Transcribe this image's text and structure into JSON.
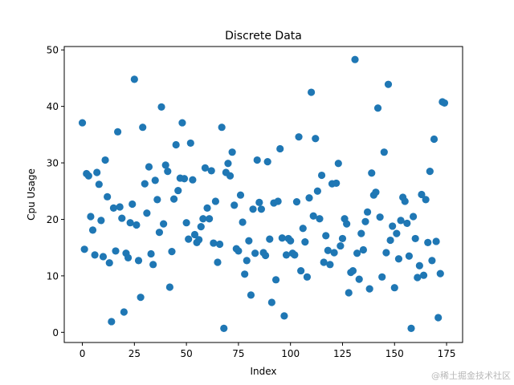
{
  "chart_data": {
    "type": "scatter",
    "title": "Discrete Data",
    "xlabel": "Index",
    "ylabel": "Cpu Usage",
    "xlim": [
      -8.7,
      182.7
    ],
    "ylim": [
      -1.8,
      50.6
    ],
    "xticks": [
      0,
      25,
      50,
      75,
      100,
      125,
      150,
      175
    ],
    "yticks": [
      0,
      10,
      20,
      30,
      40,
      50
    ],
    "grid": false,
    "color": "#1f77b4",
    "series": [
      {
        "x": [
          0,
          1,
          2,
          3,
          4,
          5,
          6,
          7,
          8,
          9,
          10,
          11,
          12,
          13,
          14,
          15,
          16,
          17,
          18,
          19,
          20,
          21,
          22,
          23,
          24,
          25,
          26,
          27,
          28,
          29,
          30,
          31,
          32,
          33,
          34,
          35,
          36,
          37,
          38,
          39,
          40,
          41,
          42,
          43,
          44,
          45,
          46,
          47,
          48,
          49,
          50,
          51,
          52,
          53,
          54,
          55,
          56,
          57,
          58,
          59,
          60,
          61,
          62,
          63,
          64,
          65,
          66,
          67,
          68,
          69,
          70,
          71,
          72,
          73,
          74,
          75,
          76,
          77,
          78,
          79,
          80,
          81,
          82,
          83,
          84,
          85,
          86,
          87,
          88,
          89,
          90,
          91,
          92,
          93,
          94,
          95,
          96,
          97,
          98,
          99,
          100,
          101,
          102,
          103,
          104,
          105,
          106,
          107,
          108,
          109,
          110,
          111,
          112,
          113,
          114,
          115,
          116,
          117,
          118,
          119,
          120,
          121,
          122,
          123,
          124,
          125,
          126,
          127,
          128,
          129,
          130,
          131,
          132,
          133,
          134,
          135,
          136,
          137,
          138,
          139,
          140,
          141,
          142,
          143,
          144,
          145,
          146,
          147,
          148,
          149,
          150,
          151,
          152,
          153,
          154,
          155,
          156,
          157,
          158,
          159,
          160,
          161,
          162,
          163,
          164,
          165,
          166,
          167,
          168,
          169,
          170,
          171,
          172,
          173,
          174
        ],
        "y": [
          37.1,
          14.7,
          28.1,
          27.7,
          20.5,
          18.1,
          13.7,
          28.3,
          26.2,
          19.8,
          13.4,
          30.5,
          24.0,
          12.3,
          1.9,
          22.0,
          14.4,
          35.5,
          22.2,
          20.2,
          3.6,
          14.0,
          13.2,
          19.4,
          22.7,
          44.8,
          19.0,
          12.7,
          6.2,
          36.3,
          26.3,
          21.1,
          29.3,
          13.9,
          12.0,
          26.9,
          23.5,
          17.7,
          39.9,
          19.2,
          29.6,
          28.5,
          8.0,
          14.3,
          23.6,
          33.2,
          25.1,
          27.3,
          37.1,
          27.2,
          19.4,
          16.5,
          33.5,
          27.0,
          17.3,
          15.9,
          16.4,
          18.7,
          20.1,
          29.1,
          22.0,
          20.1,
          28.6,
          15.8,
          23.2,
          12.4,
          15.6,
          36.3,
          0.7,
          28.3,
          29.9,
          27.7,
          31.9,
          22.5,
          14.8,
          14.4,
          24.3,
          19.5,
          10.3,
          12.7,
          16.2,
          6.6,
          21.8,
          14.0,
          30.5,
          23.0,
          21.8,
          14.1,
          13.6,
          30.2,
          16.5,
          5.3,
          22.9,
          9.3,
          23.2,
          32.5,
          16.7,
          2.9,
          13.7,
          16.6,
          16.2,
          14.0,
          13.7,
          23.1,
          34.6,
          10.9,
          18.4,
          16.0,
          9.8,
          23.8,
          42.5,
          20.6,
          34.3,
          25.0,
          20.1,
          27.8,
          12.4,
          17.1,
          14.5,
          12.0,
          26.3,
          14.1,
          26.4,
          29.9,
          15.3,
          16.6,
          20.1,
          19.2,
          7.0,
          10.6,
          10.9,
          48.3,
          14.0,
          9.4,
          17.5,
          14.6,
          19.6,
          21.3,
          7.7,
          28.2,
          24.3,
          24.8,
          39.7,
          20.4,
          9.8,
          31.9,
          14.1,
          43.9,
          16.3,
          18.8,
          7.9,
          17.5,
          13.0,
          19.8,
          23.9,
          23.2,
          19.3,
          13.5,
          0.7,
          20.5,
          16.6,
          9.7,
          11.8,
          24.4,
          10.1,
          23.5,
          15.9,
          28.5,
          12.7,
          34.2,
          16.1,
          2.6,
          10.4,
          40.8,
          40.6
        ]
      }
    ]
  },
  "watermark": "@稀土掘金技术社区"
}
